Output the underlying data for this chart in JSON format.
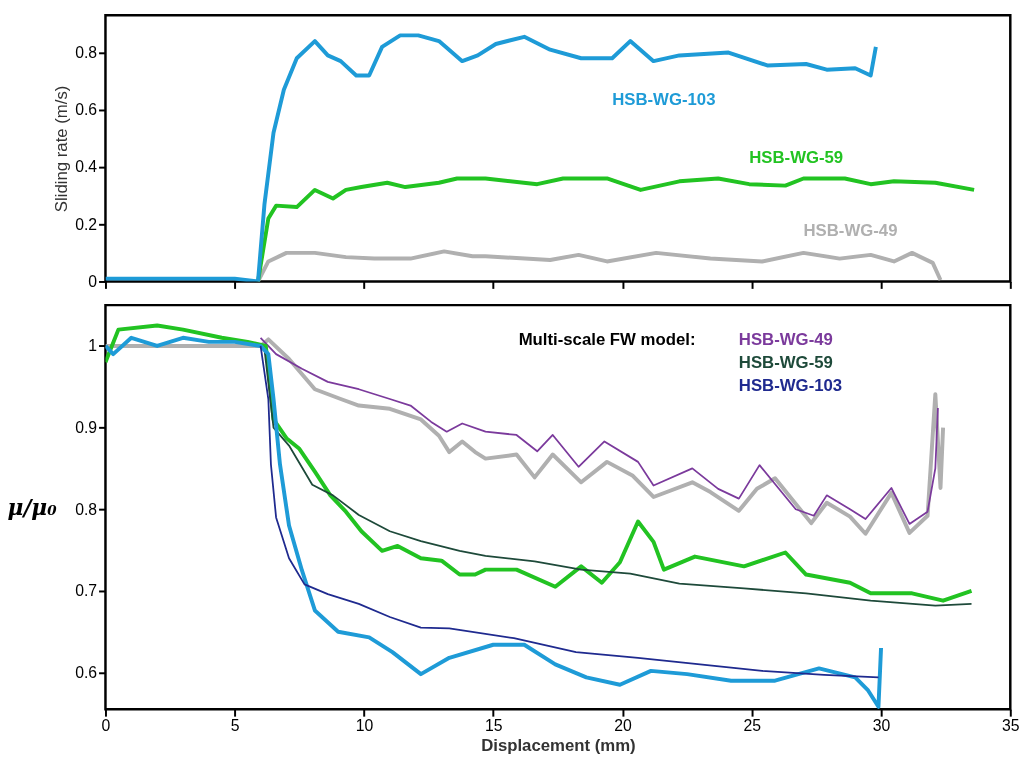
{
  "chart_data": [
    {
      "type": "line",
      "ylabel": "Sliding rate (m/s)",
      "xlim": [
        0,
        35
      ],
      "xticks": [
        0,
        5,
        10,
        15,
        20,
        25,
        30,
        35
      ],
      "ylim": [
        0,
        0.93
      ],
      "yticks": [
        0,
        0.2,
        0.4,
        0.6,
        0.8
      ],
      "tick_labels": "y",
      "grid": false,
      "series": [
        {
          "name": "HSB-WG-49",
          "color": "#b0b0b0",
          "x": [
            5.9,
            6.3,
            7.0,
            8.1,
            9.3,
            10.4,
            11.8,
            13.1,
            14.2,
            14.7,
            17.2,
            18.3,
            19.4,
            21.3,
            23.4,
            25.4,
            27.0,
            28.4,
            29.6,
            30.5,
            31.2,
            32.0,
            32.3
          ],
          "values": [
            0,
            0.07,
            0.1,
            0.1,
            0.085,
            0.08,
            0.08,
            0.105,
            0.088,
            0.088,
            0.075,
            0.093,
            0.07,
            0.1,
            0.08,
            0.07,
            0.1,
            0.08,
            0.093,
            0.07,
            0.1,
            0.065,
            0.005
          ]
        },
        {
          "name": "HSB-WG-59",
          "color": "#22c322",
          "x": [
            5.9,
            6.3,
            6.6,
            7.4,
            8.1,
            8.8,
            9.3,
            9.9,
            10.9,
            11.6,
            12.9,
            13.6,
            14.7,
            16.7,
            17.7,
            19.4,
            20.7,
            22.2,
            23.7,
            24.9,
            26.3,
            27.0,
            28.6,
            29.6,
            30.5,
            32.1,
            33.6
          ],
          "values": [
            0,
            0.22,
            0.265,
            0.26,
            0.32,
            0.29,
            0.32,
            0.33,
            0.345,
            0.33,
            0.345,
            0.36,
            0.36,
            0.34,
            0.36,
            0.36,
            0.32,
            0.35,
            0.36,
            0.34,
            0.335,
            0.36,
            0.36,
            0.34,
            0.35,
            0.345,
            0.32
          ]
        },
        {
          "name": "HSB-WG-103",
          "color": "#1e9bd7",
          "x": [
            0,
            1,
            2,
            3,
            4,
            5,
            5.9,
            6.15,
            6.5,
            6.9,
            7.4,
            8.1,
            8.6,
            9.1,
            9.7,
            10.2,
            10.7,
            11.4,
            12.1,
            12.9,
            13.8,
            14.4,
            15.1,
            16.2,
            17.2,
            18.4,
            19.6,
            20.3,
            21.2,
            22.2,
            24.1,
            25.6,
            27.1,
            27.9,
            29.0,
            29.6,
            29.8
          ],
          "values": [
            0.01,
            0.01,
            0.01,
            0.01,
            0.01,
            0.01,
            0,
            0.27,
            0.52,
            0.67,
            0.78,
            0.84,
            0.79,
            0.77,
            0.72,
            0.72,
            0.82,
            0.86,
            0.86,
            0.84,
            0.77,
            0.79,
            0.83,
            0.855,
            0.81,
            0.78,
            0.78,
            0.84,
            0.77,
            0.79,
            0.8,
            0.755,
            0.76,
            0.74,
            0.745,
            0.72,
            0.82
          ]
        }
      ]
    },
    {
      "type": "line",
      "xlabel": "Displacement (mm)",
      "ylabel": "μ/μ₀",
      "xlim": [
        0,
        35
      ],
      "xticks": [
        0,
        5,
        10,
        15,
        20,
        25,
        30,
        35
      ],
      "ylim": [
        0.555,
        1.05
      ],
      "yticks": [
        0.6,
        0.7,
        0.8,
        0.9,
        1
      ],
      "grid": false,
      "legend": "top right",
      "legend_title": "Multi-scale FW model:",
      "series": [
        {
          "color": "#b0b0b0",
          "x": [
            0,
            6,
            6.3,
            7.1,
            8.1,
            9.1,
            9.8,
            11.0,
            12.2,
            12.9,
            13.3,
            13.8,
            14.3,
            14.7,
            15.9,
            16.6,
            17.3,
            18.4,
            19.4,
            20.4,
            21.2,
            22.7,
            23.4,
            24.5,
            25.2,
            25.9,
            27.3,
            27.9,
            28.8,
            29.4,
            30.4,
            31.1,
            31.8,
            32.1,
            32.3,
            32.4
          ],
          "values": [
            1.0,
            1.0,
            1.008,
            0.984,
            0.947,
            0.935,
            0.927,
            0.923,
            0.91,
            0.89,
            0.87,
            0.883,
            0.87,
            0.862,
            0.867,
            0.839,
            0.867,
            0.833,
            0.858,
            0.841,
            0.815,
            0.833,
            0.821,
            0.798,
            0.825,
            0.838,
            0.783,
            0.808,
            0.791,
            0.77,
            0.82,
            0.771,
            0.792,
            0.941,
            0.826,
            0.9
          ]
        },
        {
          "name": "HSB-WG-49",
          "color": "#7b3a9c",
          "x": [
            6.0,
            6.6,
            7.6,
            8.6,
            9.8,
            11.0,
            11.8,
            12.6,
            13.2,
            13.8,
            14.7,
            15.9,
            16.7,
            17.3,
            18.3,
            19.3,
            20.6,
            21.2,
            22.7,
            23.7,
            24.5,
            25.3,
            26.7,
            27.4,
            27.9,
            28.8,
            29.4,
            30.4,
            31.1,
            31.8,
            32.1,
            32.2
          ],
          "values": [
            1.01,
            0.99,
            0.972,
            0.956,
            0.947,
            0.935,
            0.927,
            0.907,
            0.895,
            0.905,
            0.895,
            0.891,
            0.871,
            0.891,
            0.852,
            0.883,
            0.858,
            0.829,
            0.85,
            0.825,
            0.813,
            0.854,
            0.8,
            0.792,
            0.817,
            0.8,
            0.788,
            0.826,
            0.782,
            0.797,
            0.85,
            0.924
          ]
        },
        {
          "color": "#22c322",
          "x": [
            0,
            0.5,
            2,
            3,
            4.5,
            5.5,
            6.2,
            6.3,
            6.5,
            7.0,
            7.5,
            8.1,
            8.7,
            9.3,
            9.9,
            10.7,
            11.3,
            12.2,
            13.0,
            13.7,
            14.3,
            14.7,
            15.9,
            17.4,
            18.4,
            19.2,
            19.9,
            20.6,
            21.2,
            21.6,
            22.8,
            24.7,
            26.3,
            27.1,
            28.8,
            29.6,
            31.2,
            32.4,
            33.5
          ],
          "values": [
            0.98,
            1.02,
            1.025,
            1.02,
            1.01,
            1.005,
            1.0,
            0.975,
            0.91,
            0.887,
            0.874,
            0.846,
            0.817,
            0.797,
            0.773,
            0.749,
            0.755,
            0.74,
            0.737,
            0.72,
            0.72,
            0.726,
            0.726,
            0.705,
            0.73,
            0.71,
            0.735,
            0.785,
            0.76,
            0.726,
            0.742,
            0.73,
            0.747,
            0.72,
            0.71,
            0.697,
            0.697,
            0.688,
            0.7
          ]
        },
        {
          "name": "HSB-WG-59",
          "color": "#1e4a3a",
          "x": [
            6.15,
            6.5,
            7.1,
            8.0,
            8.8,
            9.8,
            11.0,
            12.2,
            13.7,
            14.7,
            16.6,
            18.4,
            20.3,
            22.2,
            24.7,
            27.1,
            29.6,
            32.1,
            33.5
          ],
          "values": [
            0.996,
            0.9,
            0.878,
            0.83,
            0.817,
            0.793,
            0.773,
            0.761,
            0.749,
            0.743,
            0.736,
            0.726,
            0.721,
            0.709,
            0.703,
            0.697,
            0.688,
            0.682,
            0.684
          ]
        },
        {
          "color": "#1e9bd7",
          "x": [
            0,
            0.3,
            1,
            2,
            3,
            4,
            5,
            6,
            6.3,
            6.5,
            6.75,
            7.1,
            7.6,
            8.1,
            9.0,
            10.2,
            11.1,
            12.2,
            13.3,
            15.0,
            16.2,
            17.4,
            18.6,
            19.9,
            21.1,
            22.5,
            24.2,
            25.9,
            27.6,
            29.0,
            29.5,
            29.9,
            30.0
          ],
          "values": [
            1.0,
            0.99,
            1.01,
            1.0,
            1.01,
            1.005,
            1.005,
            1.0,
            0.99,
            0.935,
            0.855,
            0.78,
            0.725,
            0.676,
            0.65,
            0.643,
            0.625,
            0.598,
            0.618,
            0.634,
            0.634,
            0.61,
            0.594,
            0.585,
            0.602,
            0.598,
            0.59,
            0.59,
            0.605,
            0.594,
            0.578,
            0.558,
            0.63
          ]
        },
        {
          "name": "HSB-WG-103",
          "color": "#1f2a8f",
          "x": [
            6.0,
            6.3,
            6.4,
            6.6,
            7.1,
            7.7,
            8.6,
            9.8,
            11.0,
            12.2,
            13.3,
            15.8,
            18.2,
            20.6,
            23.0,
            25.4,
            27.8,
            29.9
          ],
          "values": [
            1.0,
            0.935,
            0.855,
            0.79,
            0.74,
            0.708,
            0.696,
            0.684,
            0.668,
            0.655,
            0.654,
            0.642,
            0.625,
            0.618,
            0.61,
            0.602,
            0.597,
            0.594
          ]
        }
      ]
    }
  ]
}
